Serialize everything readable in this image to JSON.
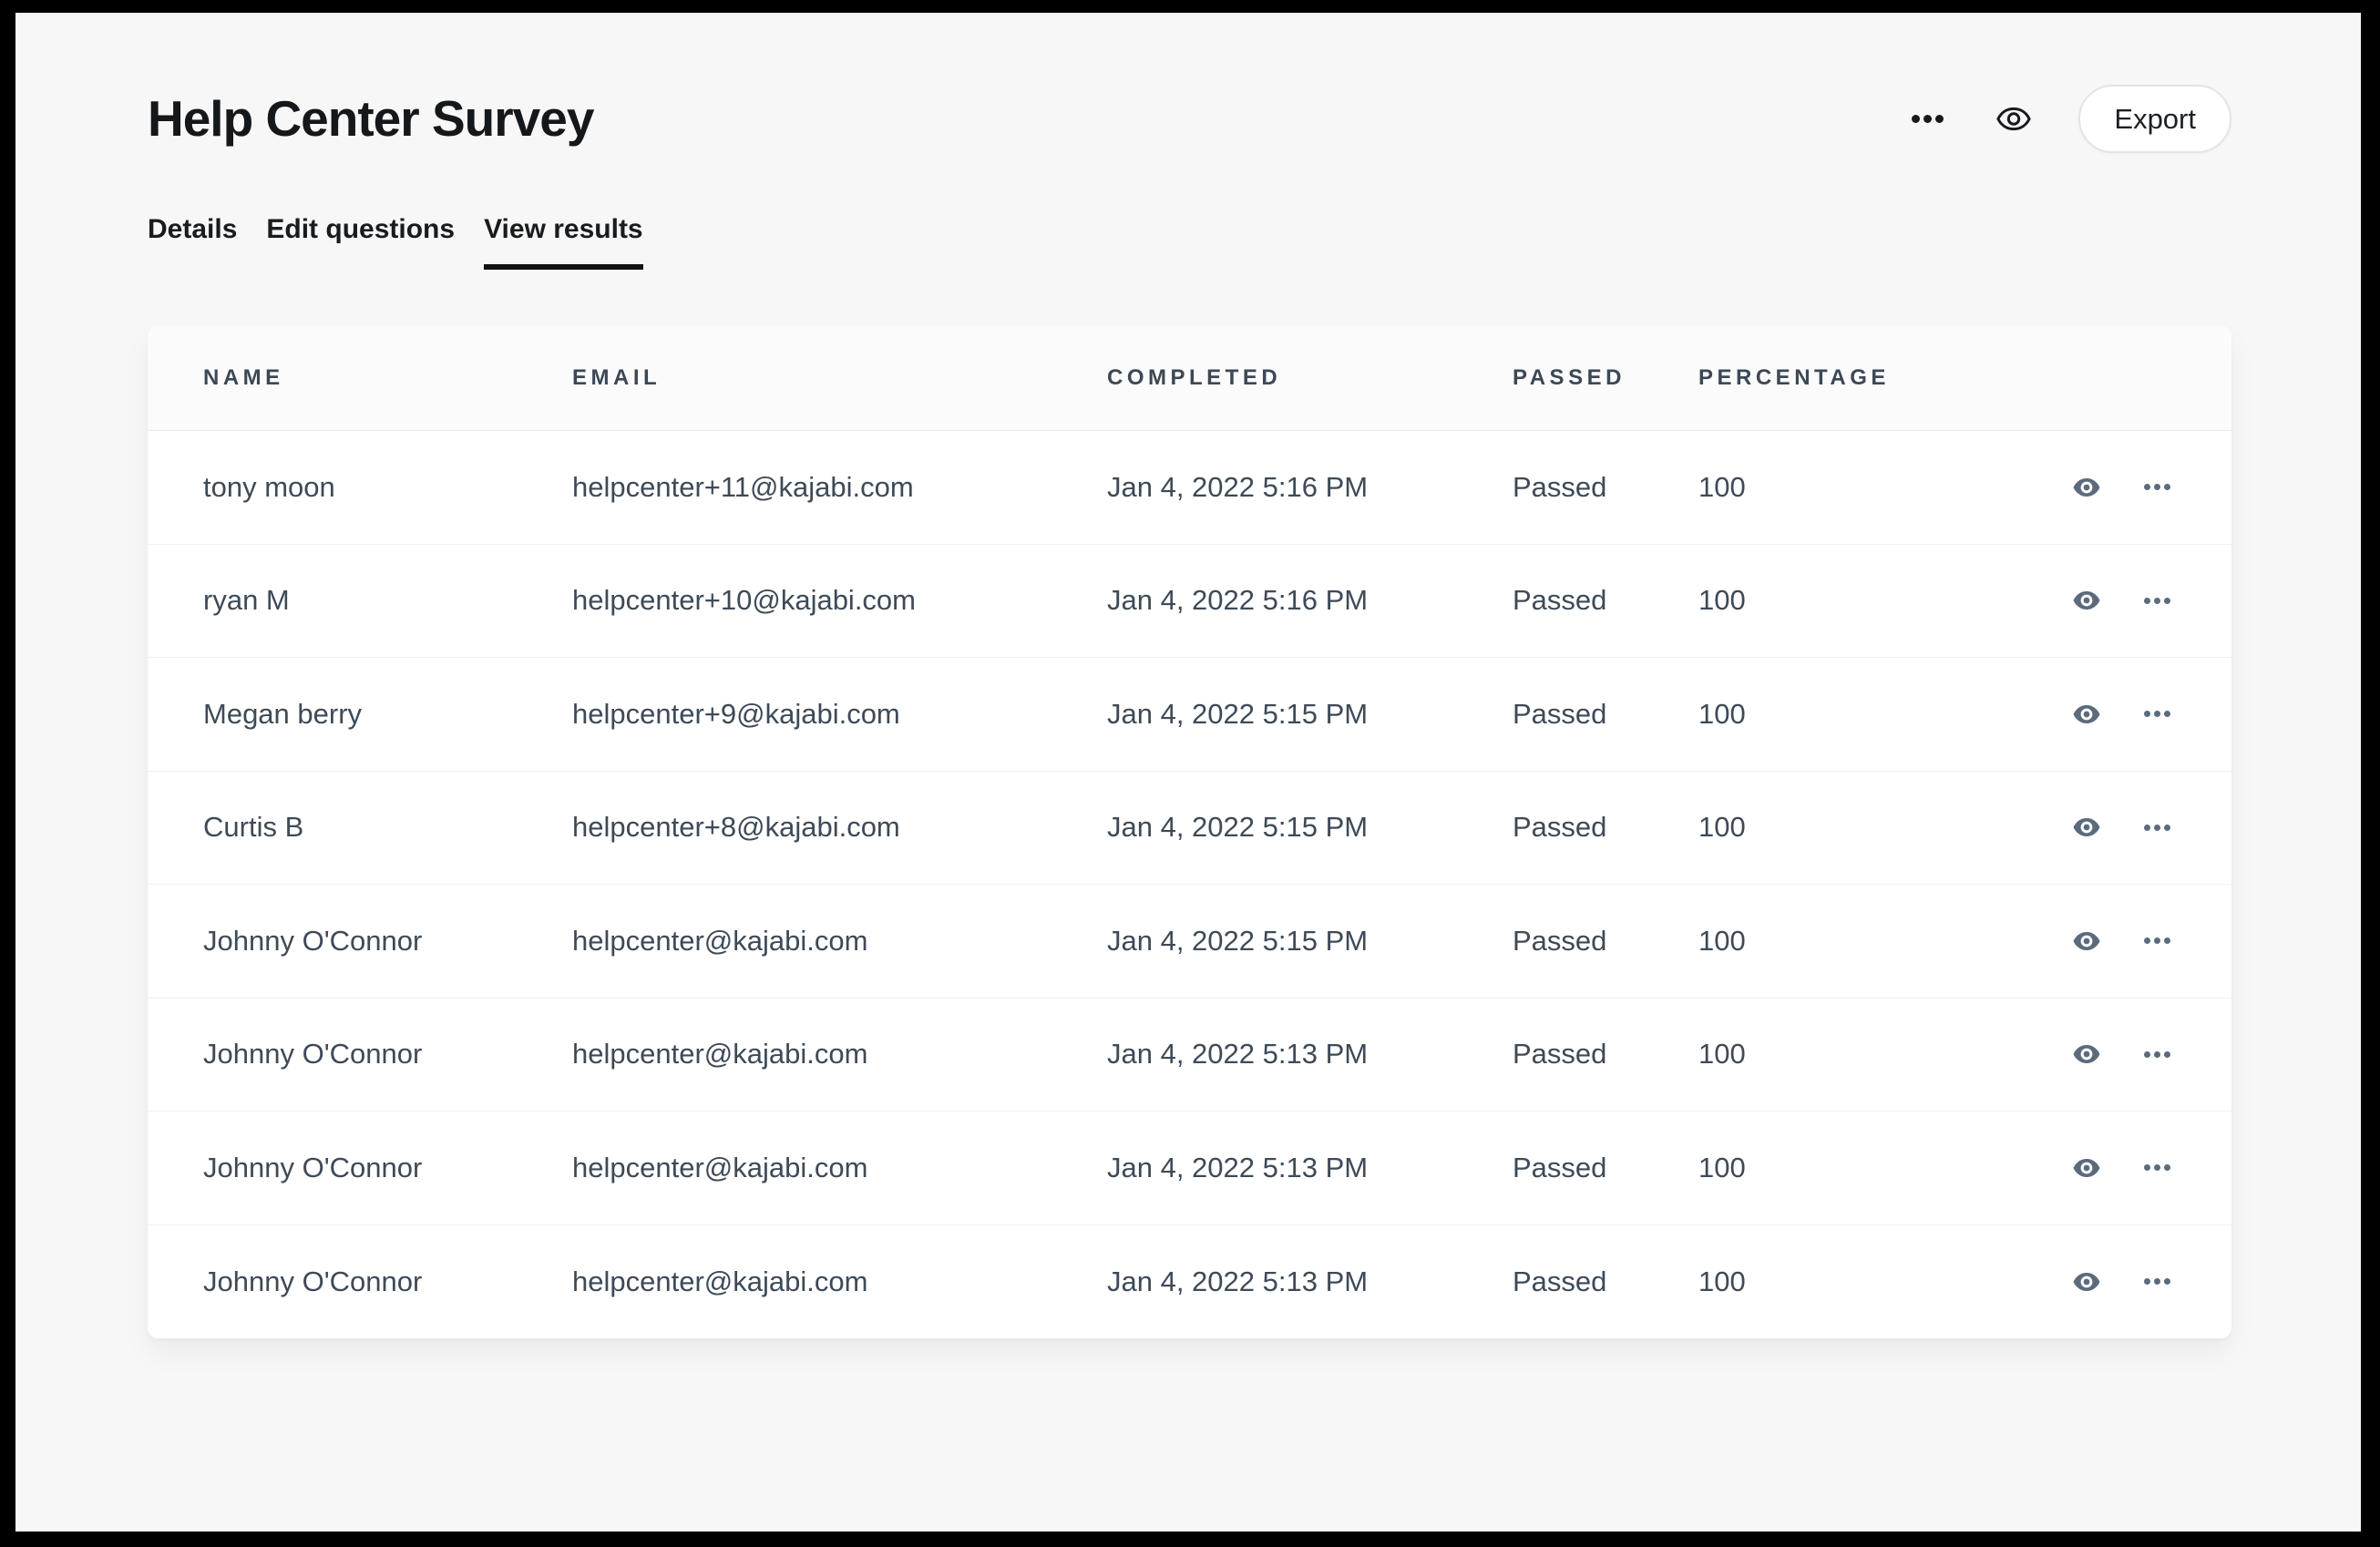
{
  "header": {
    "title": "Help Center Survey",
    "export_label": "Export",
    "more_options_icon": "ellipsis-horizontal",
    "preview_icon": "eye-outline"
  },
  "tabs": [
    {
      "label": "Details",
      "active": false
    },
    {
      "label": "Edit questions",
      "active": false
    },
    {
      "label": "View results",
      "active": true
    }
  ],
  "table": {
    "headers": [
      "NAME",
      "EMAIL",
      "COMPLETED",
      "PASSED",
      "PERCENTAGE"
    ],
    "row_action_icons": [
      "eye-filled",
      "ellipsis-horizontal"
    ],
    "rows": [
      {
        "name": "tony moon",
        "email": "helpcenter+11@kajabi.com",
        "completed": "Jan 4, 2022 5:16 PM",
        "passed": "Passed",
        "percentage": "100"
      },
      {
        "name": "ryan M",
        "email": "helpcenter+10@kajabi.com",
        "completed": "Jan 4, 2022 5:16 PM",
        "passed": "Passed",
        "percentage": "100"
      },
      {
        "name": "Megan berry",
        "email": "helpcenter+9@kajabi.com",
        "completed": "Jan 4, 2022 5:15 PM",
        "passed": "Passed",
        "percentage": "100"
      },
      {
        "name": "Curtis B",
        "email": "helpcenter+8@kajabi.com",
        "completed": "Jan 4, 2022 5:15 PM",
        "passed": "Passed",
        "percentage": "100"
      },
      {
        "name": "Johnny O'Connor",
        "email": "helpcenter@kajabi.com",
        "completed": "Jan 4, 2022 5:15 PM",
        "passed": "Passed",
        "percentage": "100"
      },
      {
        "name": "Johnny O'Connor",
        "email": "helpcenter@kajabi.com",
        "completed": "Jan 4, 2022 5:13 PM",
        "passed": "Passed",
        "percentage": "100"
      },
      {
        "name": "Johnny O'Connor",
        "email": "helpcenter@kajabi.com",
        "completed": "Jan 4, 2022 5:13 PM",
        "passed": "Passed",
        "percentage": "100"
      },
      {
        "name": "Johnny O'Connor",
        "email": "helpcenter@kajabi.com",
        "completed": "Jan 4, 2022 5:13 PM",
        "passed": "Passed",
        "percentage": "100"
      }
    ]
  },
  "colors": {
    "frame": "#000000",
    "page_background": "#f7f7f8",
    "card_background": "#ffffff",
    "header_row_background": "#fbfbfc",
    "title_text": "#15181b",
    "cell_text": "#3e4a57",
    "column_header_text": "#3c4854",
    "row_icon_slate": "#5b6b7c",
    "active_tab_underline": "#111213",
    "export_border": "#e3e4e7"
  }
}
